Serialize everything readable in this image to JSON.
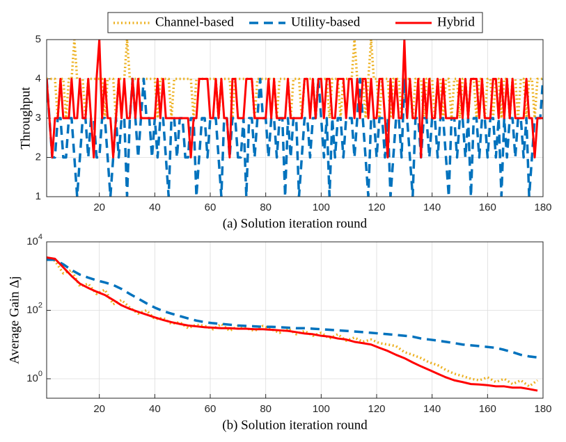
{
  "chart_data": [
    {
      "type": "line",
      "xlabel": "(a) Solution iteration round",
      "ylabel": "Throughput",
      "xlim": [
        1,
        180
      ],
      "xticks": [
        20,
        40,
        60,
        80,
        100,
        120,
        140,
        160,
        180
      ],
      "ylim": [
        1,
        5
      ],
      "yticks": [
        1,
        2,
        3,
        4,
        5
      ],
      "grid": true,
      "legend": "top",
      "x": [
        1,
        2,
        3,
        4,
        5,
        6,
        7,
        8,
        9,
        10,
        11,
        12,
        13,
        14,
        15,
        16,
        17,
        18,
        19,
        20,
        21,
        22,
        23,
        24,
        25,
        26,
        27,
        28,
        29,
        30,
        31,
        32,
        33,
        34,
        35,
        36,
        37,
        38,
        39,
        40,
        41,
        42,
        43,
        44,
        45,
        46,
        47,
        48,
        49,
        50,
        51,
        52,
        53,
        54,
        55,
        56,
        57,
        58,
        59,
        60,
        61,
        62,
        63,
        64,
        65,
        66,
        67,
        68,
        69,
        70,
        71,
        72,
        73,
        74,
        75,
        76,
        77,
        78,
        79,
        80,
        81,
        82,
        83,
        84,
        85,
        86,
        87,
        88,
        89,
        90,
        91,
        92,
        93,
        94,
        95,
        96,
        97,
        98,
        99,
        100,
        101,
        102,
        103,
        104,
        105,
        106,
        107,
        108,
        109,
        110,
        111,
        112,
        113,
        114,
        115,
        116,
        117,
        118,
        119,
        120,
        121,
        122,
        123,
        124,
        125,
        126,
        127,
        128,
        129,
        130,
        131,
        132,
        133,
        134,
        135,
        136,
        137,
        138,
        139,
        140,
        141,
        142,
        143,
        144,
        145,
        146,
        147,
        148,
        149,
        150,
        151,
        152,
        153,
        154,
        155,
        156,
        157,
        158,
        159,
        160,
        161,
        162,
        163,
        164,
        165,
        166,
        167,
        168,
        169,
        170,
        171,
        172,
        173,
        174,
        175,
        176,
        177,
        178,
        179,
        180
      ],
      "series": [
        {
          "name": "Channel-based",
          "color": "#EDB120",
          "linestyle": "dotted",
          "values": [
            4,
            4,
            4,
            4,
            3,
            4,
            4,
            3,
            4,
            4,
            5,
            4,
            4,
            4,
            3,
            4,
            4,
            4,
            4,
            4,
            4,
            3,
            4,
            4,
            4,
            3,
            4,
            4,
            4,
            5,
            4,
            4,
            4,
            4,
            4,
            4,
            4,
            4,
            4,
            4,
            3,
            4,
            4,
            4,
            4,
            3,
            4,
            4,
            4,
            4,
            4,
            4,
            4,
            3,
            4,
            4,
            4,
            4,
            4,
            4,
            4,
            4,
            3,
            4,
            4,
            4,
            4,
            3,
            4,
            4,
            4,
            4,
            4,
            4,
            4,
            3,
            4,
            4,
            4,
            4,
            4,
            4,
            4,
            3,
            4,
            4,
            4,
            4,
            3,
            4,
            4,
            4,
            3,
            4,
            4,
            4,
            4,
            3,
            4,
            4,
            4,
            4,
            3,
            4,
            4,
            4,
            3,
            4,
            4,
            4,
            4,
            5,
            4,
            4,
            4,
            3,
            4,
            5,
            4,
            4,
            3,
            4,
            4,
            4,
            3,
            4,
            4,
            4,
            3,
            4,
            4,
            4,
            3,
            4,
            4,
            4,
            3,
            4,
            4,
            4,
            3,
            4,
            4,
            3,
            4,
            4,
            3,
            4,
            4,
            3,
            4,
            4,
            3,
            4,
            4,
            3,
            4,
            4,
            3,
            4,
            4,
            3,
            4,
            4,
            3,
            4,
            4,
            3,
            4,
            4,
            3,
            4,
            4,
            3,
            4,
            4,
            3,
            4,
            4,
            4
          ]
        },
        {
          "name": "Utility-based",
          "color": "#0072BD",
          "linestyle": "dashed",
          "values": [
            4,
            3,
            2,
            2,
            3,
            3,
            2,
            2,
            3,
            3,
            2,
            1,
            2,
            3,
            3,
            2,
            3,
            3,
            2,
            2,
            3,
            3,
            2,
            1,
            2,
            3,
            2,
            3,
            3,
            1,
            3,
            4,
            3,
            2,
            3,
            4,
            3,
            3,
            2,
            3,
            2,
            3,
            3,
            2,
            1,
            3,
            3,
            2,
            3,
            3,
            2,
            2,
            3,
            3,
            1,
            2,
            3,
            3,
            2,
            3,
            3,
            3,
            2,
            1,
            3,
            3,
            2,
            3,
            3,
            2,
            2,
            3,
            1,
            3,
            3,
            2,
            3,
            4,
            3,
            3,
            2,
            3,
            3,
            2,
            3,
            3,
            1,
            3,
            2,
            3,
            3,
            1,
            2,
            3,
            3,
            2,
            3,
            3,
            4,
            3,
            2,
            3,
            1,
            3,
            2,
            3,
            3,
            2,
            3,
            3,
            3,
            2,
            3,
            4,
            3,
            2,
            1,
            3,
            3,
            2,
            3,
            3,
            2,
            3,
            1,
            2,
            3,
            3,
            2,
            4,
            3,
            2,
            1,
            3,
            3,
            2,
            3,
            3,
            2,
            3,
            3,
            2,
            3,
            3,
            2,
            1,
            3,
            3,
            2,
            3,
            3,
            2,
            3,
            1,
            3,
            3,
            2,
            3,
            3,
            2,
            3,
            3,
            2,
            3,
            1,
            3,
            2,
            3,
            3,
            2,
            3,
            3,
            2,
            3,
            1,
            2,
            3,
            3,
            3,
            4
          ]
        },
        {
          "name": "Hybrid",
          "color": "#FF0000",
          "linestyle": "solid",
          "values": [
            4,
            3,
            2,
            3,
            3,
            4,
            3,
            3,
            3,
            4,
            3,
            3,
            4,
            3,
            3,
            4,
            3,
            2,
            4,
            5,
            3,
            4,
            3,
            3,
            2,
            3,
            4,
            3,
            4,
            3,
            3,
            4,
            3,
            4,
            3,
            3,
            3,
            3,
            3,
            3,
            4,
            3,
            4,
            3,
            3,
            3,
            3,
            3,
            3,
            3,
            3,
            3,
            2,
            3,
            3,
            4,
            4,
            4,
            4,
            3,
            3,
            4,
            3,
            4,
            3,
            3,
            2,
            4,
            4,
            3,
            3,
            3,
            4,
            4,
            4,
            3,
            3,
            3,
            3,
            3,
            4,
            3,
            4,
            3,
            3,
            3,
            3,
            4,
            3,
            3,
            3,
            3,
            3,
            4,
            4,
            3,
            4,
            3,
            4,
            4,
            3,
            4,
            4,
            3,
            3,
            4,
            4,
            4,
            3,
            4,
            4,
            3,
            4,
            3,
            4,
            4,
            3,
            4,
            3,
            3,
            4,
            4,
            3,
            2,
            4,
            3,
            4,
            3,
            3,
            5,
            3,
            4,
            3,
            3,
            4,
            2,
            4,
            3,
            4,
            3,
            3,
            4,
            3,
            4,
            3,
            3,
            3,
            3,
            3,
            4,
            3,
            4,
            3,
            4,
            4,
            4,
            3,
            4,
            3,
            3,
            3,
            4,
            4,
            3,
            4,
            3,
            4,
            3,
            4,
            3,
            3,
            3,
            3,
            4,
            3,
            3,
            2,
            3,
            3,
            3
          ]
        }
      ]
    },
    {
      "type": "line",
      "xlabel": "(b) Solution iteration round",
      "ylabel": "Average Gain Δj",
      "xlim": [
        1,
        180
      ],
      "xticks": [
        20,
        40,
        60,
        80,
        100,
        120,
        140,
        160,
        180
      ],
      "ylim": [
        0.27,
        10000
      ],
      "log_y": true,
      "yticks": [
        {
          "value": 1,
          "label": "10^0"
        },
        {
          "value": 100,
          "label": "10^2"
        },
        {
          "value": 10000,
          "label": "10^4"
        }
      ],
      "grid": true,
      "x": [
        1,
        4,
        7,
        10,
        13,
        16,
        19,
        22,
        25,
        28,
        31,
        34,
        37,
        40,
        43,
        46,
        49,
        52,
        55,
        58,
        61,
        64,
        67,
        70,
        73,
        76,
        79,
        82,
        85,
        88,
        91,
        94,
        97,
        100,
        103,
        106,
        109,
        112,
        115,
        118,
        121,
        124,
        127,
        130,
        133,
        136,
        139,
        142,
        145,
        148,
        151,
        154,
        157,
        160,
        163,
        166,
        169,
        172,
        175,
        178
      ],
      "series": [
        {
          "color": "#EDB120",
          "linestyle": "dotted",
          "values": [
            3500,
            2800,
            1200,
            1500,
            500,
            600,
            300,
            400,
            150,
            200,
            120,
            80,
            100,
            55,
            60,
            40,
            45,
            30,
            38,
            35,
            28,
            40,
            25,
            35,
            30,
            25,
            35,
            28,
            22,
            30,
            20,
            25,
            18,
            22,
            15,
            20,
            13,
            16,
            12,
            14,
            11,
            10,
            9,
            6,
            5,
            4,
            3,
            2.5,
            1.8,
            1.4,
            1.2,
            1,
            0.9,
            1.1,
            0.8,
            1,
            0.7,
            0.9,
            0.6,
            0.9
          ]
        },
        {
          "color": "#0072BD",
          "linestyle": "dashed",
          "values": [
            3000,
            3000,
            2200,
            1500,
            1100,
            900,
            750,
            650,
            550,
            420,
            300,
            220,
            160,
            120,
            95,
            80,
            68,
            58,
            50,
            45,
            42,
            40,
            38,
            36,
            35,
            34,
            33,
            33,
            32,
            31,
            30,
            30,
            29,
            28,
            27,
            26,
            25,
            24,
            23,
            22,
            21,
            20,
            19,
            18,
            17,
            15,
            14,
            13,
            12,
            11,
            10,
            9.5,
            9,
            8.5,
            8,
            7,
            6,
            5,
            4.5,
            4.2
          ]
        },
        {
          "color": "#FF0000",
          "linestyle": "solid",
          "values": [
            3500,
            3200,
            1800,
            1000,
            600,
            450,
            350,
            280,
            200,
            140,
            110,
            90,
            75,
            62,
            52,
            45,
            40,
            36,
            34,
            32,
            31,
            30,
            30,
            29,
            29,
            28,
            28,
            27,
            26,
            25,
            23,
            21,
            20,
            18,
            17,
            15,
            14,
            12,
            11,
            10,
            8,
            6.5,
            5,
            4,
            3,
            2.3,
            1.8,
            1.4,
            1.1,
            0.9,
            0.8,
            0.7,
            0.68,
            0.65,
            0.6,
            0.6,
            0.55,
            0.55,
            0.5,
            0.45
          ]
        }
      ]
    }
  ]
}
